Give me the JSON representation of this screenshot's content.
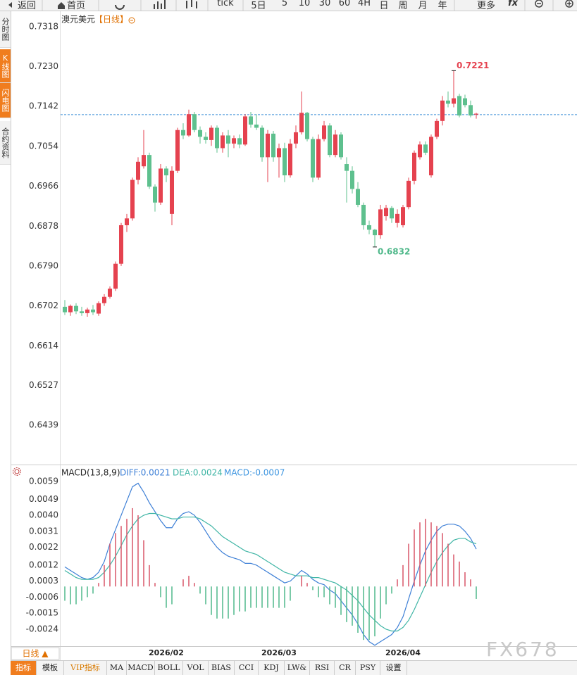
{
  "toolbar": {
    "buttons": [
      "返回",
      "首页",
      "tick",
      "5日",
      "5",
      "10",
      "30",
      "60",
      "4H",
      "日",
      "周",
      "月",
      "年",
      "更多",
      "fx"
    ]
  },
  "sidebar": {
    "tabs": [
      "分时图",
      "K线图",
      "闪电图",
      "合约资料"
    ]
  },
  "chart_data": [
    {
      "type": "candlestick",
      "title": "澳元美元",
      "subtitle": "【日线】",
      "categories": [
        null,
        null,
        null,
        null,
        null,
        null,
        null,
        null,
        null,
        null,
        null,
        null,
        null,
        null,
        null,
        null,
        null,
        null,
        "2026/02",
        null,
        null,
        null,
        null,
        null,
        null,
        null,
        null,
        null,
        null,
        null,
        null,
        null,
        null,
        null,
        null,
        null,
        null,
        null,
        "2026/03",
        null,
        null,
        null,
        null,
        null,
        null,
        null,
        null,
        null,
        null,
        null,
        null,
        null,
        null,
        null,
        null,
        null,
        null,
        null,
        null,
        null,
        "2026/04",
        null,
        null,
        null,
        null,
        null,
        null,
        null,
        null,
        null,
        null,
        null,
        null,
        null
      ],
      "open": [
        0.67,
        0.6688,
        0.6702,
        0.669,
        0.6686,
        0.6694,
        0.6685,
        0.6708,
        0.6722,
        0.674,
        0.6795,
        0.688,
        0.6895,
        0.698,
        0.701,
        0.7035,
        0.6965,
        0.693,
        0.7005,
        0.6905,
        0.7,
        0.709,
        0.7078,
        0.7125,
        0.709,
        0.7075,
        0.7068,
        0.7095,
        0.705,
        0.7078,
        0.706,
        0.7072,
        0.7058,
        0.712,
        0.7102,
        0.7095,
        0.703,
        0.7082,
        0.703,
        0.705,
        0.699,
        0.706,
        0.7085,
        0.7128,
        0.707,
        0.6985,
        0.707,
        0.71,
        0.7035,
        0.708,
        0.7015,
        0.7,
        0.696,
        0.6925,
        0.688,
        0.687,
        0.6858,
        0.69,
        0.6918,
        0.6885,
        0.688,
        0.692,
        0.6978,
        0.703,
        0.7058,
        0.699,
        0.7075,
        0.711,
        0.7155,
        0.7148,
        0.7165,
        0.716,
        0.7145,
        0.7124
      ],
      "high": [
        0.6715,
        0.6705,
        0.6708,
        0.67,
        0.6698,
        0.6704,
        0.6712,
        0.6728,
        0.6745,
        0.68,
        0.6885,
        0.6905,
        0.6985,
        0.703,
        0.709,
        0.704,
        0.697,
        0.7015,
        0.701,
        0.701,
        0.7095,
        0.7105,
        0.7135,
        0.713,
        0.7098,
        0.7085,
        0.71,
        0.71,
        0.7085,
        0.709,
        0.7078,
        0.708,
        0.7125,
        0.713,
        0.7125,
        0.71,
        0.709,
        0.7088,
        0.706,
        0.7062,
        0.707,
        0.71,
        0.7175,
        0.713,
        0.7075,
        0.708,
        0.711,
        0.7105,
        0.709,
        0.7085,
        0.703,
        0.701,
        0.6975,
        0.693,
        0.689,
        0.6872,
        0.6925,
        0.6925,
        0.6922,
        0.6915,
        0.6925,
        0.6985,
        0.7045,
        0.7065,
        0.7065,
        0.708,
        0.7115,
        0.7165,
        0.7175,
        0.7221,
        0.717,
        0.7168,
        0.7155,
        0.7128
      ],
      "low": [
        0.6682,
        0.668,
        0.6684,
        0.668,
        0.6678,
        0.6682,
        0.668,
        0.6702,
        0.6718,
        0.6735,
        0.679,
        0.6865,
        0.689,
        0.697,
        0.7005,
        0.696,
        0.691,
        0.6925,
        0.6975,
        0.688,
        0.6995,
        0.707,
        0.7075,
        0.7085,
        0.706,
        0.706,
        0.7055,
        0.704,
        0.704,
        0.703,
        0.705,
        0.705,
        0.7055,
        0.7095,
        0.709,
        0.702,
        0.6975,
        0.702,
        0.6985,
        0.6975,
        0.6985,
        0.705,
        0.708,
        0.7065,
        0.6975,
        0.698,
        0.7065,
        0.703,
        0.703,
        0.7025,
        0.693,
        0.695,
        0.692,
        0.687,
        0.686,
        0.6832,
        0.685,
        0.689,
        0.6885,
        0.6875,
        0.6875,
        0.6915,
        0.697,
        0.7025,
        0.7035,
        0.6985,
        0.707,
        0.71,
        0.714,
        0.714,
        0.7118,
        0.714,
        0.7118,
        0.7115
      ],
      "close": [
        0.6688,
        0.6702,
        0.669,
        0.6686,
        0.6694,
        0.6688,
        0.6708,
        0.6722,
        0.674,
        0.6795,
        0.688,
        0.6895,
        0.698,
        0.702,
        0.7035,
        0.6965,
        0.693,
        0.7005,
        0.699,
        0.7,
        0.709,
        0.7078,
        0.7125,
        0.709,
        0.7075,
        0.7068,
        0.7095,
        0.705,
        0.7078,
        0.706,
        0.7072,
        0.7058,
        0.712,
        0.7102,
        0.7095,
        0.703,
        0.7082,
        0.703,
        0.705,
        0.699,
        0.706,
        0.7085,
        0.7128,
        0.707,
        0.6985,
        0.707,
        0.71,
        0.7035,
        0.708,
        0.703,
        0.7,
        0.696,
        0.6925,
        0.688,
        0.687,
        0.6858,
        0.6915,
        0.6918,
        0.6895,
        0.6905,
        0.692,
        0.6978,
        0.704,
        0.7058,
        0.704,
        0.7075,
        0.711,
        0.7155,
        0.7148,
        0.716,
        0.7122,
        0.7145,
        0.7122,
        0.7126
      ],
      "up_color": "#e5424f",
      "down_color": "#5ec08e",
      "ylim": [
        0.6352,
        0.7352
      ],
      "yticks": [
        0.7318,
        {
          "value": 0.723,
          "label": "0.7230"
        },
        0.7142,
        0.7054,
        0.6966,
        0.6878,
        {
          "value": 0.679,
          "label": "0.6790"
        },
        0.6702,
        0.6614,
        0.6527,
        0.6439
      ],
      "grid": false,
      "last_price": 0.7124,
      "annotations": {
        "high": 0.7221,
        "low": 0.6832
      }
    },
    {
      "type": "macd",
      "title": "MACD(13,8,9)",
      "series": [
        {
          "name": "DIFF:0.0021",
          "type": "line",
          "color": "#3d7fd6",
          "values": [
            0.0011,
            0.0009,
            0.0007,
            0.0005,
            0.0004,
            0.0005,
            0.0008,
            0.0014,
            0.0024,
            0.0032,
            0.004,
            0.0048,
            0.0056,
            0.0058,
            0.0053,
            0.0047,
            0.0042,
            0.0037,
            0.0033,
            0.0033,
            0.0038,
            0.0041,
            0.0042,
            0.004,
            0.0036,
            0.0031,
            0.0026,
            0.0022,
            0.0019,
            0.0017,
            0.0016,
            0.0015,
            0.0013,
            0.0013,
            0.0012,
            0.001,
            0.0008,
            0.0006,
            0.0004,
            0.0002,
            0.0003,
            0.0006,
            0.0009,
            0.0007,
            0.0004,
            0.0002,
            0.0001,
            -0.0002,
            -0.0004,
            -0.0008,
            -0.0012,
            -0.0016,
            -0.0021,
            -0.0027,
            -0.0031,
            -0.0033,
            -0.0031,
            -0.0029,
            -0.0027,
            -0.0023,
            -0.0017,
            -0.0007,
            0.0003,
            0.0012,
            0.002,
            0.0026,
            0.0031,
            0.0034,
            0.0035,
            0.0035,
            0.0034,
            0.0031,
            0.0027,
            0.0021
          ]
        },
        {
          "name": "DEA:0.0024",
          "type": "line",
          "color": "#3fb5a5",
          "values": [
            0.0009,
            0.0007,
            0.0005,
            0.0004,
            0.0004,
            0.0004,
            0.0005,
            0.0008,
            0.0012,
            0.0017,
            0.0023,
            0.0029,
            0.0034,
            0.0038,
            0.004,
            0.0041,
            0.0041,
            0.004,
            0.0039,
            0.0038,
            0.0038,
            0.0039,
            0.0039,
            0.0039,
            0.0038,
            0.0036,
            0.0034,
            0.0031,
            0.0028,
            0.0026,
            0.0024,
            0.0022,
            0.002,
            0.0019,
            0.0018,
            0.0016,
            0.0014,
            0.0012,
            0.001,
            0.0008,
            0.0007,
            0.0006,
            0.0006,
            0.0006,
            0.0005,
            0.0005,
            0.0004,
            0.0003,
            0.0002,
            0.0,
            -0.0002,
            -0.0005,
            -0.0008,
            -0.0012,
            -0.0016,
            -0.0019,
            -0.0022,
            -0.0024,
            -0.0025,
            -0.0025,
            -0.0023,
            -0.0019,
            -0.0013,
            -0.0006,
            0.0001,
            0.0008,
            0.0014,
            0.0019,
            0.0023,
            0.0026,
            0.0027,
            0.0027,
            0.0025,
            0.0024
          ]
        },
        {
          "name": "MACD:-0.0007",
          "type": "histogram",
          "color": "#3d95e0",
          "up_color": "#d85668",
          "down_color": "#4fb88a",
          "values": [
            -0.0008,
            -0.001,
            -0.001,
            -0.0008,
            -0.0006,
            -0.0004,
            0.0002,
            0.0012,
            0.0024,
            0.003,
            0.0034,
            0.0038,
            0.0044,
            0.004,
            0.0026,
            0.0012,
            0.0002,
            -0.0006,
            -0.0012,
            -0.001,
            0.0,
            0.0004,
            0.0006,
            0.0002,
            -0.0004,
            -0.001,
            -0.0016,
            -0.0018,
            -0.0018,
            -0.0018,
            -0.0016,
            -0.0014,
            -0.0014,
            -0.0012,
            -0.0012,
            -0.0012,
            -0.0012,
            -0.0012,
            -0.0012,
            -0.0012,
            -0.0008,
            0.0,
            0.0006,
            0.0002,
            -0.0002,
            -0.0006,
            -0.0006,
            -0.001,
            -0.0012,
            -0.0016,
            -0.002,
            -0.0022,
            -0.0026,
            -0.003,
            -0.003,
            -0.0028,
            -0.0018,
            -0.001,
            -0.0004,
            0.0004,
            0.0012,
            0.0024,
            0.0032,
            0.0036,
            0.0038,
            0.0036,
            0.0034,
            0.003,
            0.0024,
            0.0018,
            0.0014,
            0.0008,
            0.0004,
            -0.0007
          ]
        }
      ],
      "ylim": [
        -0.00335,
        0.00665
      ],
      "yticks": [
        0.0059,
        0.0049,
        {
          "value": 0.004,
          "label": "0.0040"
        },
        0.0031,
        0.0022,
        0.0012,
        0.0003,
        -0.0006,
        -0.0015,
        -0.0024
      ],
      "grid": false
    }
  ],
  "bottom": {
    "period": "日线 ▲",
    "tabs": [
      "指标",
      "模板",
      "VIP指标",
      "MA",
      "MACD",
      "BOLL",
      "VOL",
      "BIAS",
      "CCI",
      "KDJ",
      "LW&",
      "RSI",
      "CR",
      "PSY",
      "设置"
    ]
  },
  "watermark": "FX678"
}
